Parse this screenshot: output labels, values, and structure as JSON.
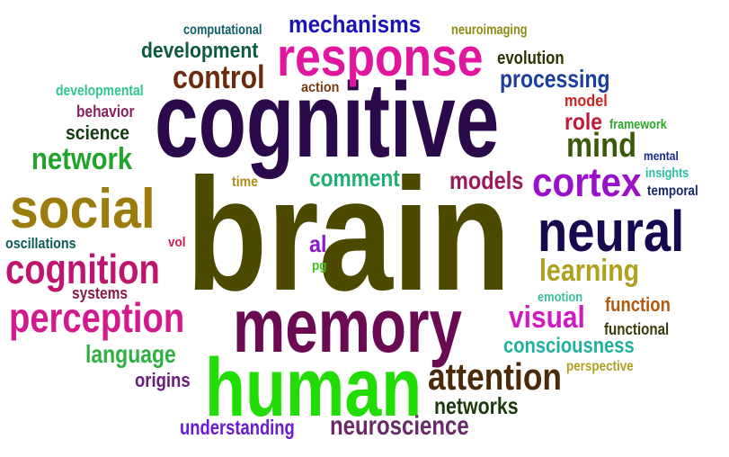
{
  "words": [
    {
      "text": "brain",
      "color": "#4d4a00"
    },
    {
      "text": "cognitive",
      "color": "#2a0a4a"
    },
    {
      "text": "response",
      "color": "#e0169e"
    },
    {
      "text": "memory",
      "color": "#6a0a52"
    },
    {
      "text": "human",
      "color": "#22dd05"
    },
    {
      "text": "neural",
      "color": "#17084f"
    },
    {
      "text": "social",
      "color": "#9b7d0d"
    },
    {
      "text": "cortex",
      "color": "#9b10c9"
    },
    {
      "text": "perception",
      "color": "#d21a8c"
    },
    {
      "text": "cognition",
      "color": "#c0156e"
    },
    {
      "text": "mechanisms",
      "color": "#1c12b8"
    },
    {
      "text": "control",
      "color": "#6b2b0f"
    },
    {
      "text": "development",
      "color": "#0e5a40"
    },
    {
      "text": "computational",
      "color": "#0f5f6a"
    },
    {
      "text": "neuroimaging",
      "color": "#8c8a14"
    },
    {
      "text": "evolution",
      "color": "#2a3302"
    },
    {
      "text": "processing",
      "color": "#1a3e9a"
    },
    {
      "text": "developmental",
      "color": "#2ec98a"
    },
    {
      "text": "action",
      "color": "#7a3a10"
    },
    {
      "text": "behavior",
      "color": "#8a2060"
    },
    {
      "text": "science",
      "color": "#143d10"
    },
    {
      "text": "network",
      "color": "#21a42a"
    },
    {
      "text": "model",
      "color": "#d12222"
    },
    {
      "text": "role",
      "color": "#c01a3a"
    },
    {
      "text": "framework",
      "color": "#29a82d"
    },
    {
      "text": "mind",
      "color": "#3a5a0a"
    },
    {
      "text": "mental",
      "color": "#1a2a8a"
    },
    {
      "text": "insights",
      "color": "#2bbfa0"
    },
    {
      "text": "temporal",
      "color": "#142a6a"
    },
    {
      "text": "time",
      "color": "#b08a1a"
    },
    {
      "text": "comment",
      "color": "#1eb070"
    },
    {
      "text": "models",
      "color": "#9a1a5a"
    },
    {
      "text": "al",
      "color": "#8a1ad0"
    },
    {
      "text": "pg",
      "color": "#40c01a"
    },
    {
      "text": "vol",
      "color": "#d01a4a"
    },
    {
      "text": "oscillations",
      "color": "#0e5a5a"
    },
    {
      "text": "systems",
      "color": "#8a1a4a"
    },
    {
      "text": "learning",
      "color": "#b0a020"
    },
    {
      "text": "emotion",
      "color": "#3ac0a0"
    },
    {
      "text": "function",
      "color": "#b05a10"
    },
    {
      "text": "visual",
      "color": "#d01ac0"
    },
    {
      "text": "functional",
      "color": "#3a3a0a"
    },
    {
      "text": "consciousness",
      "color": "#20b0a0"
    },
    {
      "text": "perspective",
      "color": "#b0a020"
    },
    {
      "text": "attention",
      "color": "#4a2a0a"
    },
    {
      "text": "language",
      "color": "#30b040"
    },
    {
      "text": "origins",
      "color": "#6a1a7a"
    },
    {
      "text": "networks",
      "color": "#1a3a0a"
    },
    {
      "text": "understanding",
      "color": "#6a1ad0"
    },
    {
      "text": "neuroscience",
      "color": "#6a2a6a"
    }
  ]
}
